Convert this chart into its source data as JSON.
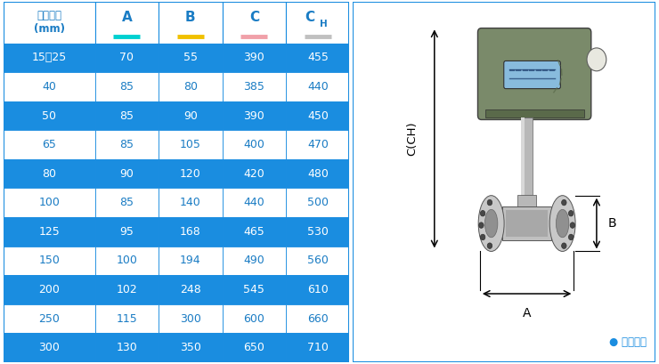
{
  "rows": [
    [
      "15～25",
      "70",
      "55",
      "390",
      "455"
    ],
    [
      "40",
      "85",
      "80",
      "385",
      "440"
    ],
    [
      "50",
      "85",
      "90",
      "390",
      "450"
    ],
    [
      "65",
      "85",
      "105",
      "400",
      "470"
    ],
    [
      "80",
      "90",
      "120",
      "420",
      "480"
    ],
    [
      "100",
      "85",
      "140",
      "440",
      "500"
    ],
    [
      "125",
      "95",
      "168",
      "465",
      "530"
    ],
    [
      "150",
      "100",
      "194",
      "490",
      "560"
    ],
    [
      "200",
      "102",
      "248",
      "545",
      "610"
    ],
    [
      "250",
      "115",
      "300",
      "600",
      "660"
    ],
    [
      "300",
      "130",
      "350",
      "650",
      "710"
    ]
  ],
  "row_bg_dark": "#1a8de0",
  "row_bg_light": "#FFFFFF",
  "row_text_dark": "#FFFFFF",
  "row_text_light": "#1a7cc4",
  "header_bg": "#FFFFFF",
  "header_text": "#1a7cc4",
  "border_color": "#1a8de0",
  "underline_colors": [
    "#00d0d0",
    "#f0c000",
    "#f0a0a8",
    "#c0c0c0"
  ],
  "note_text": "● 常规仪表",
  "note_color": "#1a8de0",
  "head_color": "#7a8a6a",
  "head_dark": "#5a6a4a",
  "steel_light": "#d8d8d8",
  "steel_mid": "#b8b8b8",
  "steel_dark": "#888888",
  "flange_light": "#d0d0d0",
  "flange_mid": "#b0b0b0",
  "display_bg": "#88bbdd"
}
